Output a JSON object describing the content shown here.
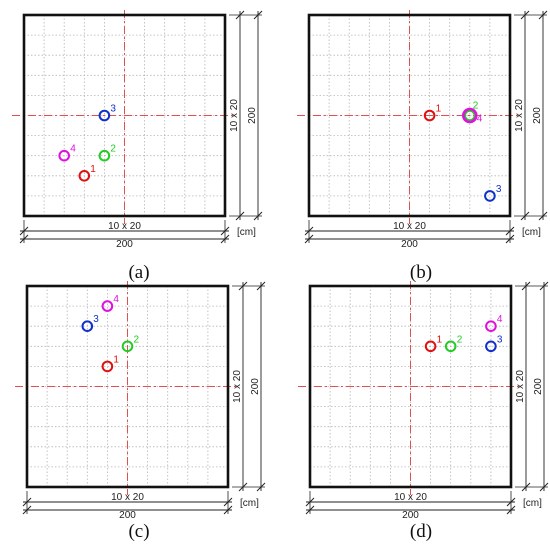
{
  "panels": [
    {
      "id": "a",
      "caption": "(a)",
      "bottom_dims": [
        "10 x 20",
        "200"
      ],
      "right_dims": [
        "10 x 20",
        "200"
      ],
      "unit": "[cm]",
      "points": [
        {
          "label": "1",
          "color": "#e01010",
          "x": -40,
          "y": -60
        },
        {
          "label": "2",
          "color": "#22cc22",
          "x": -20,
          "y": -40
        },
        {
          "label": "3",
          "color": "#1030cc",
          "x": -20,
          "y": 0
        },
        {
          "label": "4",
          "color": "#e010e0",
          "x": -60,
          "y": -40
        }
      ]
    },
    {
      "id": "b",
      "caption": "(b)",
      "bottom_dims": [
        "10 x 20",
        "200"
      ],
      "right_dims": [
        "10 x 20",
        "200"
      ],
      "unit": "[cm]",
      "points": [
        {
          "label": "1",
          "color": "#e01010",
          "x": 20,
          "y": 0
        },
        {
          "label": "2",
          "color": "#22cc22",
          "x": 60,
          "y": 0
        },
        {
          "label": "3",
          "color": "#1030cc",
          "x": 80,
          "y": -80
        },
        {
          "label": "4",
          "color": "#e010e0",
          "x": 60,
          "y": 0
        }
      ]
    },
    {
      "id": "c",
      "caption": "(c)",
      "bottom_dims": [
        "10 x 20",
        "200"
      ],
      "right_dims": [
        "10 x 20",
        "200"
      ],
      "unit": "[cm]",
      "points": [
        {
          "label": "1",
          "color": "#e01010",
          "x": -20,
          "y": 20
        },
        {
          "label": "2",
          "color": "#22cc22",
          "x": 0,
          "y": 40
        },
        {
          "label": "3",
          "color": "#1030cc",
          "x": -40,
          "y": 60
        },
        {
          "label": "4",
          "color": "#e010e0",
          "x": -20,
          "y": 80
        }
      ]
    },
    {
      "id": "d",
      "caption": "(d)",
      "bottom_dims": [
        "10 x 20",
        "200"
      ],
      "right_dims": [
        "10 x 20",
        "200"
      ],
      "unit": "[cm]",
      "points": [
        {
          "label": "1",
          "color": "#e01010",
          "x": 20,
          "y": 40
        },
        {
          "label": "2",
          "color": "#22cc22",
          "x": 40,
          "y": 40
        },
        {
          "label": "3",
          "color": "#1030cc",
          "x": 80,
          "y": 40
        },
        {
          "label": "4",
          "color": "#e010e0",
          "x": 80,
          "y": 60
        }
      ]
    }
  ]
}
